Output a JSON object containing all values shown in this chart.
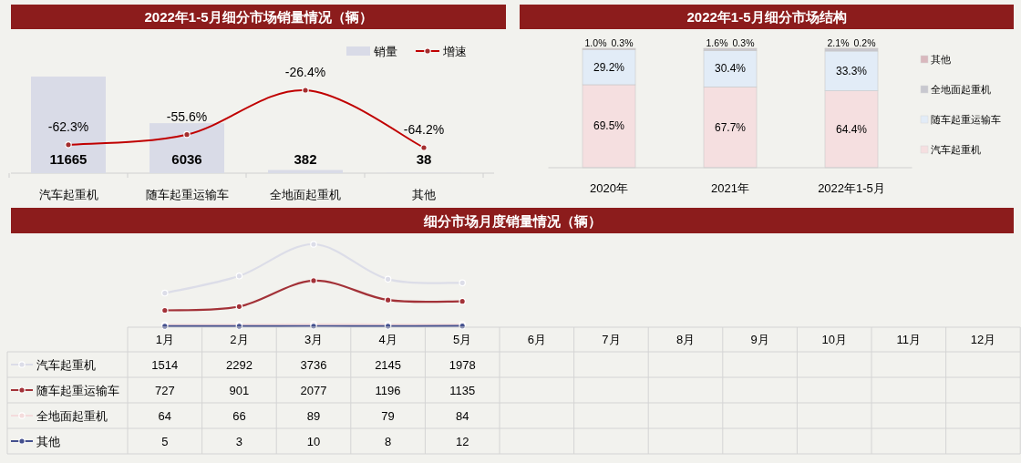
{
  "chart_data": [
    {
      "type": "bar",
      "title": "2022年1-5月细分市场销量情况（辆）",
      "categories": [
        "汽车起重机",
        "随车起重运输车",
        "全地面起重机",
        "其他"
      ],
      "legend": "top right",
      "series": [
        {
          "name": "销量",
          "type": "bar",
          "color": "#d9dbe7",
          "values": [
            11665,
            6036,
            382,
            38
          ],
          "value_labels": [
            "11665",
            "6036",
            "382",
            "38"
          ]
        },
        {
          "name": "增速",
          "type": "line",
          "axis": "y2",
          "marker": "circle",
          "color": "#c00000",
          "values": [
            -62.3,
            -55.6,
            -26.4,
            -64.2
          ],
          "value_labels": [
            "-62.3%",
            "-55.6%",
            "-26.4%",
            "-64.2%"
          ]
        }
      ]
    },
    {
      "type": "bar",
      "stacked": true,
      "title": "2022年1-5月细分市场结构",
      "categories": [
        "2020年",
        "2021年",
        "2022年1-5月"
      ],
      "legend": "right",
      "series": [
        {
          "name": "汽车起重机",
          "color": "#f5dfe0",
          "values": [
            69.5,
            67.7,
            64.4
          ],
          "value_labels": [
            "69.5%",
            "67.7%",
            "64.4%"
          ]
        },
        {
          "name": "随车起重运输车",
          "color": "#e2ecf7",
          "values": [
            29.2,
            30.4,
            33.3
          ],
          "value_labels": [
            "29.2%",
            "30.4%",
            "33.3%"
          ]
        },
        {
          "name": "全地面起重机",
          "color": "#c8c8cf",
          "values": [
            1.0,
            1.6,
            2.1
          ],
          "value_labels": [
            "1.0%",
            "1.6%",
            "2.1%"
          ]
        },
        {
          "name": "其他",
          "color": "#d9b8bd",
          "values": [
            0.3,
            0.3,
            0.2
          ],
          "value_labels": [
            "0.3%",
            "0.3%",
            "0.2%"
          ]
        }
      ]
    },
    {
      "type": "line",
      "title": "细分市场月度销量情况（辆）",
      "categories": [
        "1月",
        "2月",
        "3月",
        "4月",
        "5月",
        "6月",
        "7月",
        "8月",
        "9月",
        "10月",
        "11月",
        "12月"
      ],
      "data_labels": true,
      "marker": "circle",
      "legend": "bottom left",
      "series": [
        {
          "name": "汽车起重机",
          "color": "#dcdde8",
          "values": [
            1514,
            2292,
            3736,
            2145,
            1978,
            null,
            null,
            null,
            null,
            null,
            null,
            null
          ]
        },
        {
          "name": "随车起重运输车",
          "color": "#a33238",
          "values": [
            727,
            901,
            2077,
            1196,
            1135,
            null,
            null,
            null,
            null,
            null,
            null,
            null
          ]
        },
        {
          "name": "全地面起重机",
          "color": "#f4dcdc",
          "values": [
            64,
            66,
            89,
            79,
            84,
            null,
            null,
            null,
            null,
            null,
            null,
            null
          ]
        },
        {
          "name": "其他",
          "color": "#44508e",
          "values": [
            5,
            3,
            10,
            8,
            12,
            null,
            null,
            null,
            null,
            null,
            null,
            null
          ]
        }
      ]
    }
  ]
}
